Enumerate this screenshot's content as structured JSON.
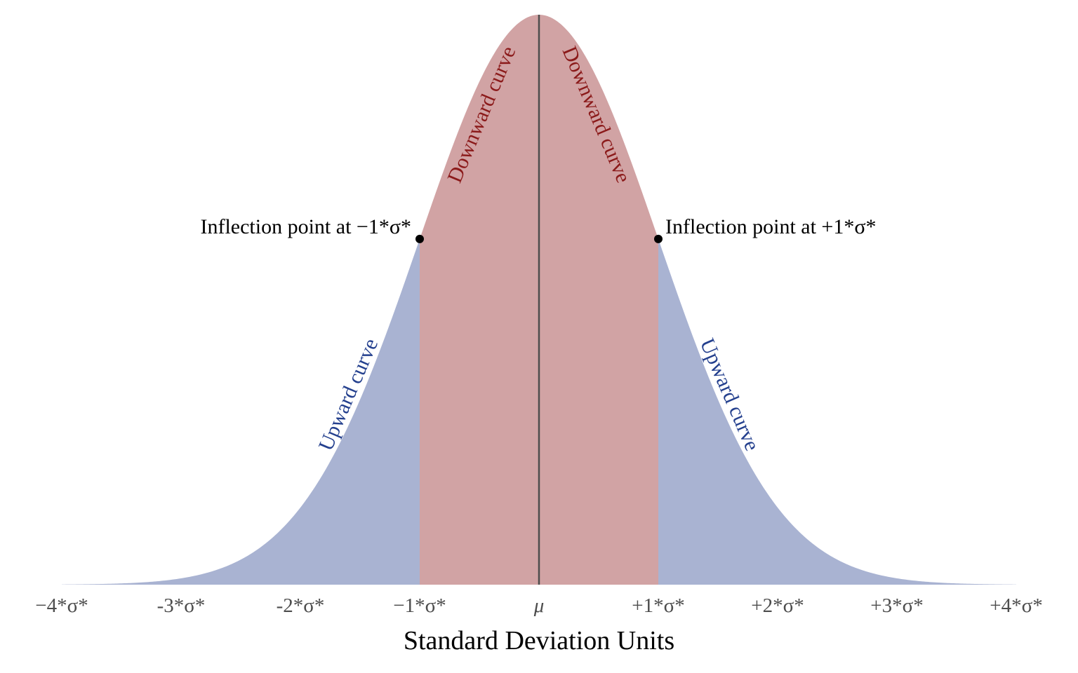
{
  "chart_data": {
    "type": "area",
    "title": "",
    "xlabel": "Standard Deviation Units",
    "ylabel": "",
    "xlim": [
      -4,
      4
    ],
    "ylim": [
      0,
      0.4
    ],
    "grid": false,
    "distribution": "normal",
    "mean": 0,
    "sd": 1,
    "ticks": [
      {
        "x": -4,
        "label": "−4*σ*"
      },
      {
        "x": -3,
        "label": "-3*σ*"
      },
      {
        "x": -2,
        "label": "-2*σ*"
      },
      {
        "x": -1,
        "label": "−1*σ*"
      },
      {
        "x": 0,
        "label": "μ"
      },
      {
        "x": 1,
        "label": "+1*σ*"
      },
      {
        "x": 2,
        "label": "+2*σ*"
      },
      {
        "x": 3,
        "label": "+3*σ*"
      },
      {
        "x": 4,
        "label": "+4*σ*"
      }
    ],
    "regions": [
      {
        "from": -4,
        "to": -1,
        "color": "#a9b3d2",
        "label": "Upward curve",
        "label_color": "#24408e"
      },
      {
        "from": -1,
        "to": 1,
        "color": "#d1a3a4",
        "label": "Downward curve",
        "label_color": "#8b1a1a"
      },
      {
        "from": 1,
        "to": 4,
        "color": "#a9b3d2",
        "label": "Upward curve",
        "label_color": "#24408e"
      }
    ],
    "mean_line_color": "#4d4d4d",
    "inflection_points": [
      {
        "x": -1,
        "label": "Inflection point at −1*σ*"
      },
      {
        "x": 1,
        "label": "Inflection point at +1*σ*"
      }
    ]
  }
}
